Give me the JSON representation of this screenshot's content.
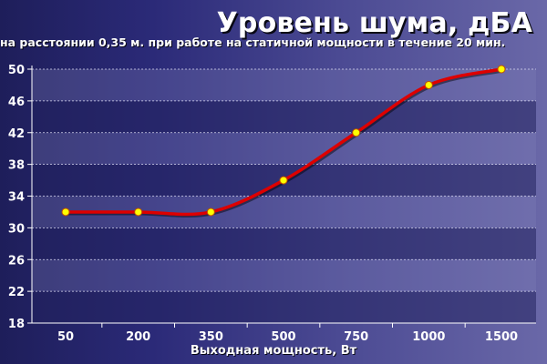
{
  "chart_data": {
    "type": "line",
    "title": "Уровень шума, дБА",
    "subtitle": "на расстоянии 0,35 м. при работе на статичной мощности в течение 20 мин.",
    "xlabel": "Выходная мощность, Вт",
    "ylabel": "",
    "categories": [
      "50",
      "200",
      "350",
      "500",
      "750",
      "1000",
      "1500"
    ],
    "values": [
      32,
      32,
      32,
      36,
      42,
      48,
      50
    ],
    "ylim": [
      18,
      50
    ],
    "yticks": [
      "18",
      "22",
      "26",
      "30",
      "34",
      "38",
      "42",
      "46",
      "50"
    ],
    "grid": true,
    "legend": "none",
    "colors": {
      "line": "#dd0000",
      "marker_fill": "#ffff00",
      "marker_stroke": "#c05000"
    }
  }
}
